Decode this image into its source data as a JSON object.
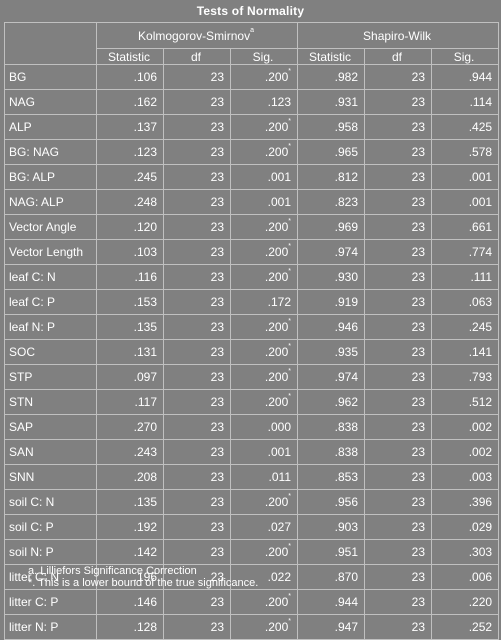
{
  "title": "Tests of Normality",
  "groups": {
    "ks": "Kolmogorov-Smirnov",
    "ks_mark": "a",
    "sw": "Shapiro-Wilk"
  },
  "cols": [
    "Statistic",
    "df",
    "Sig."
  ],
  "rows": [
    {
      "label": "BG",
      "ks": [
        ".106",
        "23",
        ".200"
      ],
      "mark": true,
      "sw": [
        ".982",
        "23",
        ".944"
      ]
    },
    {
      "label": "NAG",
      "ks": [
        ".162",
        "23",
        ".123"
      ],
      "mark": false,
      "sw": [
        ".931",
        "23",
        ".114"
      ]
    },
    {
      "label": "ALP",
      "ks": [
        ".137",
        "23",
        ".200"
      ],
      "mark": true,
      "sw": [
        ".958",
        "23",
        ".425"
      ]
    },
    {
      "label": "BG: NAG",
      "ks": [
        ".123",
        "23",
        ".200"
      ],
      "mark": true,
      "sw": [
        ".965",
        "23",
        ".578"
      ]
    },
    {
      "label": "BG: ALP",
      "ks": [
        ".245",
        "23",
        ".001"
      ],
      "mark": false,
      "sw": [
        ".812",
        "23",
        ".001"
      ]
    },
    {
      "label": "NAG: ALP",
      "ks": [
        ".248",
        "23",
        ".001"
      ],
      "mark": false,
      "sw": [
        ".823",
        "23",
        ".001"
      ]
    },
    {
      "label": "Vector Angle",
      "ks": [
        ".120",
        "23",
        ".200"
      ],
      "mark": true,
      "sw": [
        ".969",
        "23",
        ".661"
      ]
    },
    {
      "label": "Vector Length",
      "ks": [
        ".103",
        "23",
        ".200"
      ],
      "mark": true,
      "sw": [
        ".974",
        "23",
        ".774"
      ]
    },
    {
      "label": "leaf C: N",
      "ks": [
        ".116",
        "23",
        ".200"
      ],
      "mark": true,
      "sw": [
        ".930",
        "23",
        ".111"
      ]
    },
    {
      "label": "leaf C: P",
      "ks": [
        ".153",
        "23",
        ".172"
      ],
      "mark": false,
      "sw": [
        ".919",
        "23",
        ".063"
      ]
    },
    {
      "label": "leaf N: P",
      "ks": [
        ".135",
        "23",
        ".200"
      ],
      "mark": true,
      "sw": [
        ".946",
        "23",
        ".245"
      ]
    },
    {
      "label": "SOC",
      "ks": [
        ".131",
        "23",
        ".200"
      ],
      "mark": true,
      "sw": [
        ".935",
        "23",
        ".141"
      ]
    },
    {
      "label": "STP",
      "ks": [
        ".097",
        "23",
        ".200"
      ],
      "mark": true,
      "sw": [
        ".974",
        "23",
        ".793"
      ]
    },
    {
      "label": "STN",
      "ks": [
        ".117",
        "23",
        ".200"
      ],
      "mark": true,
      "sw": [
        ".962",
        "23",
        ".512"
      ]
    },
    {
      "label": "SAP",
      "ks": [
        ".270",
        "23",
        ".000"
      ],
      "mark": false,
      "sw": [
        ".838",
        "23",
        ".002"
      ]
    },
    {
      "label": "SAN",
      "ks": [
        ".243",
        "23",
        ".001"
      ],
      "mark": false,
      "sw": [
        ".838",
        "23",
        ".002"
      ]
    },
    {
      "label": "SNN",
      "ks": [
        ".208",
        "23",
        ".011"
      ],
      "mark": false,
      "sw": [
        ".853",
        "23",
        ".003"
      ]
    },
    {
      "label": "soil C: N",
      "ks": [
        ".135",
        "23",
        ".200"
      ],
      "mark": true,
      "sw": [
        ".956",
        "23",
        ".396"
      ]
    },
    {
      "label": "soil C: P",
      "ks": [
        ".192",
        "23",
        ".027"
      ],
      "mark": false,
      "sw": [
        ".903",
        "23",
        ".029"
      ]
    },
    {
      "label": "soil N: P",
      "ks": [
        ".142",
        "23",
        ".200"
      ],
      "mark": true,
      "sw": [
        ".951",
        "23",
        ".303"
      ]
    },
    {
      "label": "litter C: N",
      "ks": [
        ".196",
        "23",
        ".022"
      ],
      "mark": false,
      "sw": [
        ".870",
        "23",
        ".006"
      ]
    },
    {
      "label": "litter C: P",
      "ks": [
        ".146",
        "23",
        ".200"
      ],
      "mark": true,
      "sw": [
        ".944",
        "23",
        ".220"
      ]
    },
    {
      "label": "litter N: P",
      "ks": [
        ".128",
        "23",
        ".200"
      ],
      "mark": true,
      "sw": [
        ".947",
        "23",
        ".252"
      ]
    }
  ],
  "sig_mark": "*",
  "footnotes": [
    "a. Lilliefors Significance Correction",
    "*. This is a lower bound of the true significance."
  ],
  "colors": {
    "background": "#808080",
    "text": "#ffffff",
    "grid": "#c0c0c0"
  }
}
